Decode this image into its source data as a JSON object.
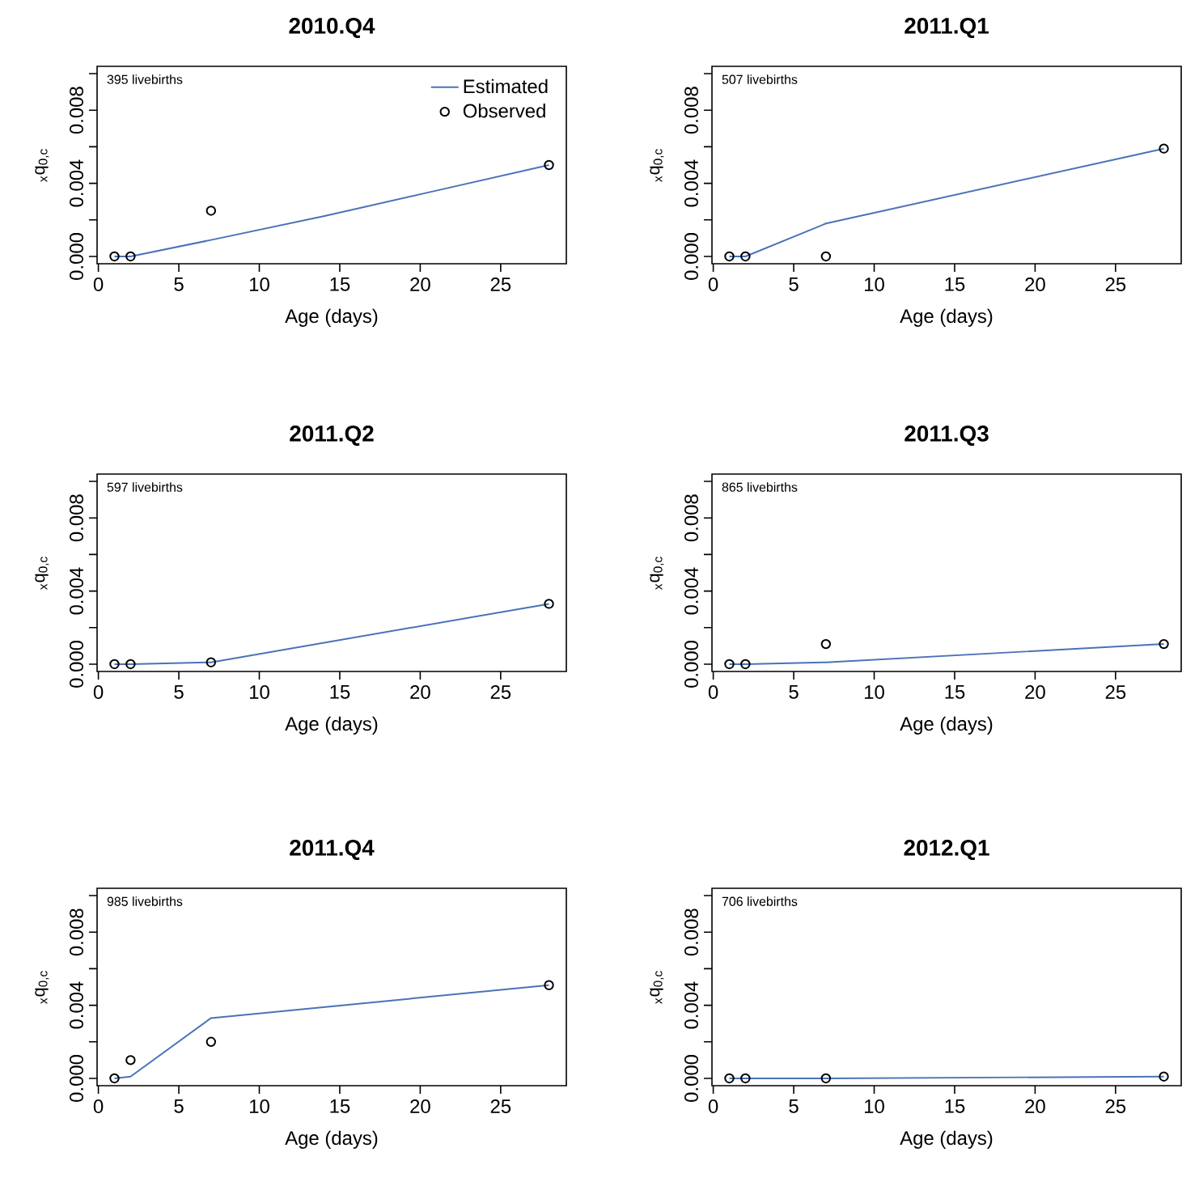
{
  "chart_data": [
    {
      "type": "line",
      "title": "2010.Q4",
      "xlabel": "Age (days)",
      "ylabel": "$_{x}$q$_{0,c}$",
      "annotations": [
        "395 livebirths"
      ],
      "xlim": [
        -0.08,
        29.08
      ],
      "ylim": [
        -0.0004,
        0.0104
      ],
      "xticks": [
        0,
        5,
        10,
        15,
        20,
        25
      ],
      "yticks": [
        {
          "value": 0,
          "label": "0.000"
        },
        {
          "value": 0.002,
          "label": null
        },
        {
          "value": 0.004,
          "label": "0.004"
        },
        {
          "value": 0.006,
          "label": null
        },
        {
          "value": 0.008,
          "label": "0.008"
        },
        {
          "value": 0.01,
          "label": null
        }
      ],
      "legend": "top right",
      "grid": false,
      "x": [
        1,
        2,
        7,
        28
      ],
      "series": [
        {
          "name": "Estimated",
          "color": "#4a72b8",
          "marker": "none",
          "line_style": "solid",
          "x": [
            1,
            2,
            7,
            14,
            21,
            28
          ],
          "values": [
            0,
            0,
            0.0009,
            0.0022,
            0.0036,
            0.005
          ]
        },
        {
          "name": "Observed",
          "type": "scatter",
          "color": "#000000",
          "marker": "circle",
          "values": [
            0,
            0,
            0.0025,
            0.005
          ]
        }
      ]
    },
    {
      "type": "line",
      "title": "2011.Q1",
      "xlabel": "Age (days)",
      "ylabel": "$_{x}$q$_{0,c}$",
      "annotations": [
        "507 livebirths"
      ],
      "xlim": [
        -0.08,
        29.08
      ],
      "ylim": [
        -0.0004,
        0.0104
      ],
      "xticks": [
        0,
        5,
        10,
        15,
        20,
        25
      ],
      "yticks": [
        {
          "value": 0,
          "label": "0.000"
        },
        {
          "value": 0.002,
          "label": null
        },
        {
          "value": 0.004,
          "label": "0.004"
        },
        {
          "value": 0.006,
          "label": null
        },
        {
          "value": 0.008,
          "label": "0.008"
        },
        {
          "value": 0.01,
          "label": null
        }
      ],
      "grid": false,
      "x": [
        1,
        2,
        7,
        28
      ],
      "series": [
        {
          "color": "#4a72b8",
          "marker": "none",
          "line_style": "solid",
          "values": [
            0,
            0,
            0.0018,
            0.0059
          ]
        },
        {
          "type": "scatter",
          "color": "#000000",
          "marker": "circle",
          "values": [
            0,
            0,
            0,
            0.0059
          ]
        }
      ]
    },
    {
      "type": "line",
      "title": "2011.Q2",
      "xlabel": "Age (days)",
      "ylabel": "$_{x}$q$_{0,c}$",
      "annotations": [
        "597 livebirths"
      ],
      "xlim": [
        -0.08,
        29.08
      ],
      "ylim": [
        -0.0004,
        0.0104
      ],
      "xticks": [
        0,
        5,
        10,
        15,
        20,
        25
      ],
      "yticks": [
        {
          "value": 0,
          "label": "0.000"
        },
        {
          "value": 0.002,
          "label": null
        },
        {
          "value": 0.004,
          "label": "0.004"
        },
        {
          "value": 0.006,
          "label": null
        },
        {
          "value": 0.008,
          "label": "0.008"
        },
        {
          "value": 0.01,
          "label": null
        }
      ],
      "grid": false,
      "x": [
        1,
        2,
        7,
        28
      ],
      "series": [
        {
          "color": "#4a72b8",
          "marker": "none",
          "line_style": "solid",
          "values": [
            0,
            0,
            0.0001,
            0.0033
          ]
        },
        {
          "type": "scatter",
          "color": "#000000",
          "marker": "circle",
          "values": [
            0,
            0,
            0.0001,
            0.0033
          ]
        }
      ]
    },
    {
      "type": "line",
      "title": "2011.Q3",
      "xlabel": "Age (days)",
      "ylabel": "$_{x}$q$_{0,c}$",
      "annotations": [
        "865 livebirths"
      ],
      "xlim": [
        -0.08,
        29.08
      ],
      "ylim": [
        -0.0004,
        0.0104
      ],
      "xticks": [
        0,
        5,
        10,
        15,
        20,
        25
      ],
      "yticks": [
        {
          "value": 0,
          "label": "0.000"
        },
        {
          "value": 0.002,
          "label": null
        },
        {
          "value": 0.004,
          "label": "0.004"
        },
        {
          "value": 0.006,
          "label": null
        },
        {
          "value": 0.008,
          "label": "0.008"
        },
        {
          "value": 0.01,
          "label": null
        }
      ],
      "grid": false,
      "x": [
        1,
        2,
        7,
        28
      ],
      "series": [
        {
          "color": "#4a72b8",
          "marker": "none",
          "line_style": "solid",
          "values": [
            0,
            0,
            0.0001,
            0.0011
          ]
        },
        {
          "type": "scatter",
          "color": "#000000",
          "marker": "circle",
          "values": [
            0,
            0,
            0.0011,
            0.0011
          ]
        }
      ]
    },
    {
      "type": "line",
      "title": "2011.Q4",
      "xlabel": "Age (days)",
      "ylabel": "$_{x}$q$_{0,c}$",
      "annotations": [
        "985 livebirths"
      ],
      "xlim": [
        -0.08,
        29.08
      ],
      "ylim": [
        -0.0004,
        0.0104
      ],
      "xticks": [
        0,
        5,
        10,
        15,
        20,
        25
      ],
      "yticks": [
        {
          "value": 0,
          "label": "0.000"
        },
        {
          "value": 0.002,
          "label": null
        },
        {
          "value": 0.004,
          "label": "0.004"
        },
        {
          "value": 0.006,
          "label": null
        },
        {
          "value": 0.008,
          "label": "0.008"
        },
        {
          "value": 0.01,
          "label": null
        }
      ],
      "grid": false,
      "x": [
        1,
        2,
        7,
        28
      ],
      "series": [
        {
          "color": "#4a72b8",
          "marker": "none",
          "line_style": "solid",
          "values": [
            0,
            0.0001,
            0.0033,
            0.0051
          ]
        },
        {
          "type": "scatter",
          "color": "#000000",
          "marker": "circle",
          "values": [
            0,
            0.001,
            0.002,
            0.0051
          ]
        }
      ]
    },
    {
      "type": "line",
      "title": "2012.Q1",
      "xlabel": "Age (days)",
      "ylabel": "$_{x}$q$_{0,c}$",
      "annotations": [
        "706 livebirths"
      ],
      "xlim": [
        -0.08,
        29.08
      ],
      "ylim": [
        -0.0004,
        0.0104
      ],
      "xticks": [
        0,
        5,
        10,
        15,
        20,
        25
      ],
      "yticks": [
        {
          "value": 0,
          "label": "0.000"
        },
        {
          "value": 0.002,
          "label": null
        },
        {
          "value": 0.004,
          "label": "0.004"
        },
        {
          "value": 0.006,
          "label": null
        },
        {
          "value": 0.008,
          "label": "0.008"
        },
        {
          "value": 0.01,
          "label": null
        }
      ],
      "grid": false,
      "x": [
        1,
        2,
        7,
        28
      ],
      "series": [
        {
          "color": "#4a72b8",
          "marker": "none",
          "line_style": "solid",
          "values": [
            0,
            0,
            0,
            0.0001
          ]
        },
        {
          "type": "scatter",
          "color": "#000000",
          "marker": "circle",
          "values": [
            0,
            0,
            0,
            0.0001
          ]
        }
      ]
    }
  ]
}
